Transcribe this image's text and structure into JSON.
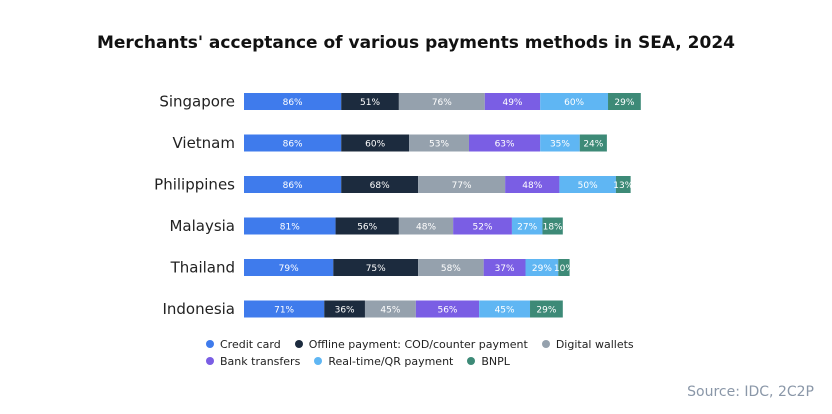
{
  "chart_data": {
    "type": "bar",
    "orientation": "horizontal",
    "stacked": true,
    "title": "Merchants' acceptance of various payments methods in SEA, 2024",
    "categories": [
      "Singapore",
      "Vietnam",
      "Philippines",
      "Malaysia",
      "Thailand",
      "Indonesia"
    ],
    "series": [
      {
        "name": "Credit card",
        "color": "#3f7bec",
        "values": [
          86,
          86,
          86,
          81,
          79,
          71
        ],
        "labels": [
          "86%",
          "86%",
          "86%",
          "81%",
          "79%",
          "71%"
        ]
      },
      {
        "name": "Offline payment: COD/counter payment",
        "color": "#1c2b3e",
        "values": [
          51,
          60,
          68,
          56,
          75,
          36
        ],
        "labels": [
          "51%",
          "60%",
          "68%",
          "56%",
          "75%",
          "36%"
        ]
      },
      {
        "name": "Digital wallets",
        "color": "#95a1ad",
        "values": [
          76,
          53,
          77,
          48,
          58,
          45
        ],
        "labels": [
          "76%",
          "53%",
          "77%",
          "48%",
          "58%",
          "45%"
        ]
      },
      {
        "name": "Bank transfers",
        "color": "#7a5ee4",
        "values": [
          49,
          63,
          48,
          52,
          37,
          56
        ],
        "labels": [
          "49%",
          "63%",
          "48%",
          "52%",
          "37%",
          "56%"
        ]
      },
      {
        "name": "Real-time/QR payment",
        "color": "#5fb6f3",
        "values": [
          60,
          35,
          50,
          27,
          29,
          45
        ],
        "labels": [
          "60%",
          "35%",
          "50%",
          "27%",
          "29%",
          "45%"
        ]
      },
      {
        "name": "BNPL",
        "color": "#3d8a77",
        "values": [
          29,
          24,
          13,
          18,
          10,
          29
        ],
        "labels": [
          "29%",
          "24%",
          "13%",
          "18%",
          "10%",
          "29%"
        ]
      }
    ],
    "legend_position": "bottom",
    "grid": false
  },
  "source": "Source: IDC, 2C2P"
}
